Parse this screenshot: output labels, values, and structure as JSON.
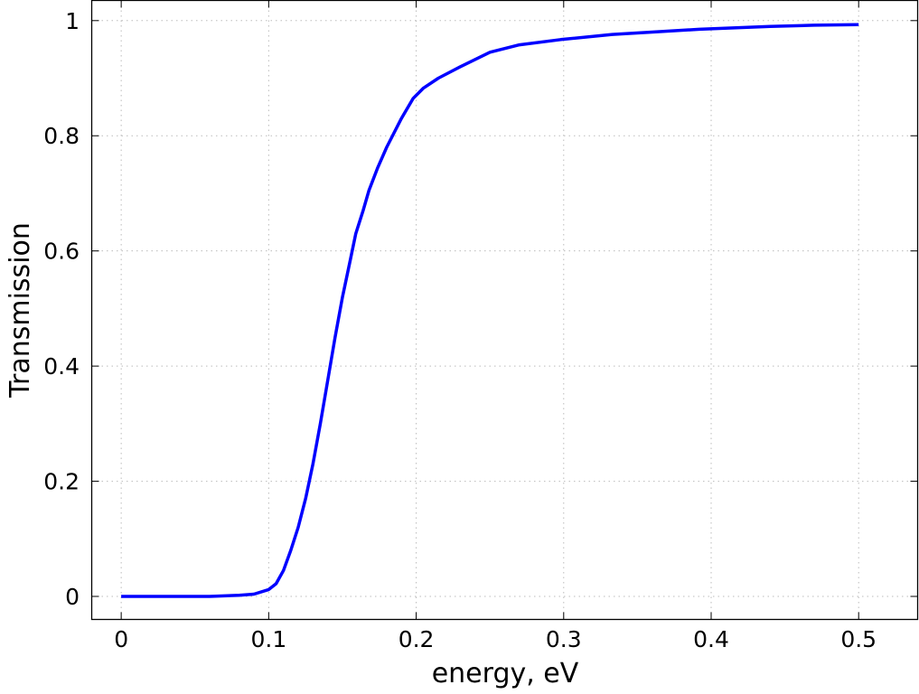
{
  "chart_data": {
    "type": "line",
    "title": "",
    "xlabel": "energy, eV",
    "ylabel": "Transmission",
    "xlim": [
      -0.02,
      0.54
    ],
    "ylim": [
      -0.04,
      1.035
    ],
    "xticks": [
      0,
      0.1,
      0.2,
      0.3,
      0.4,
      0.5
    ],
    "xtick_labels": [
      "0",
      "0.1",
      "0.2",
      "0.3",
      "0.4",
      "0.5"
    ],
    "yticks": [
      0,
      0.2,
      0.4,
      0.6,
      0.8,
      1
    ],
    "ytick_labels": [
      "0",
      "0.2",
      "0.4",
      "0.6",
      "0.8",
      "1"
    ],
    "grid": true,
    "series": [
      {
        "color": "#0000ff",
        "x": [
          0,
          0.02,
          0.04,
          0.06,
          0.07,
          0.08,
          0.09,
          0.1,
          0.105,
          0.11,
          0.115,
          0.12,
          0.125,
          0.13,
          0.135,
          0.141,
          0.145,
          0.15,
          0.155,
          0.159,
          0.164,
          0.168,
          0.174,
          0.18,
          0.19,
          0.198,
          0.205,
          0.215,
          0.23,
          0.25,
          0.27,
          0.298,
          0.333,
          0.36,
          0.392,
          0.44,
          0.47,
          0.5
        ],
        "y": [
          0,
          0,
          0,
          0,
          0.001,
          0.002,
          0.004,
          0.012,
          0.022,
          0.045,
          0.08,
          0.12,
          0.17,
          0.23,
          0.3,
          0.39,
          0.45,
          0.52,
          0.58,
          0.63,
          0.67,
          0.705,
          0.745,
          0.78,
          0.83,
          0.865,
          0.883,
          0.9,
          0.92,
          0.945,
          0.958,
          0.967,
          0.976,
          0.98,
          0.985,
          0.99,
          0.992,
          0.993
        ]
      }
    ]
  }
}
